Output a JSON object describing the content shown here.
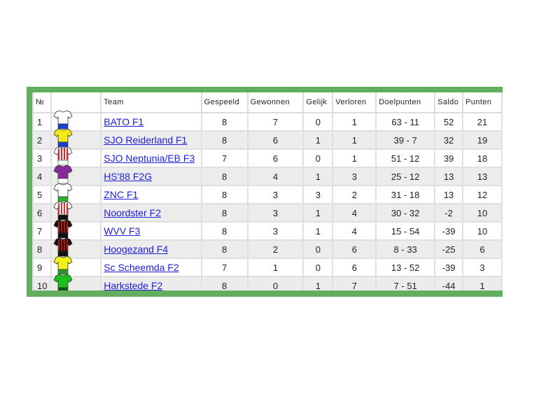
{
  "headers": [
    "№",
    "",
    "Team",
    "Gespeeld",
    "Gewonnen",
    "Gelijk",
    "Verloren",
    "Doelpunten",
    "Saldo",
    "Punten"
  ],
  "rows": [
    {
      "pos": "1",
      "team": "BATO F1",
      "shirt": {
        "body": "#ffffff",
        "stripes": null,
        "shorts": "#1a3fd0"
      },
      "played": "8",
      "won": "7",
      "draw": "0",
      "lost": "1",
      "goals": "63 - 11",
      "diff": "52",
      "points": "21"
    },
    {
      "pos": "2",
      "team": "SJO Reiderland F1",
      "shirt": {
        "body": "#f4e81a",
        "stripes": null,
        "shorts": "#1a3fd0"
      },
      "played": "8",
      "won": "6",
      "draw": "1",
      "lost": "1",
      "goals": "39 - 7",
      "diff": "32",
      "points": "19"
    },
    {
      "pos": "3",
      "team": "SJO Neptunia/EB F3",
      "shirt": {
        "body": "#ffffff",
        "stripes": "#e02020",
        "shorts": "#ffffff"
      },
      "played": "7",
      "won": "6",
      "draw": "0",
      "lost": "1",
      "goals": "51 - 12",
      "diff": "39",
      "points": "18"
    },
    {
      "pos": "4",
      "team": "HS'88 F2G",
      "shirt": {
        "body": "#8a2a9a",
        "stripes": null,
        "shorts": "#ffffff"
      },
      "played": "8",
      "won": "4",
      "draw": "1",
      "lost": "3",
      "goals": "25 - 12",
      "diff": "13",
      "points": "13"
    },
    {
      "pos": "5",
      "team": "ZNC F1",
      "shirt": {
        "body": "#ffffff",
        "stripes": null,
        "shorts": "#2ab02a"
      },
      "played": "8",
      "won": "3",
      "draw": "3",
      "lost": "2",
      "goals": "31 - 18",
      "diff": "13",
      "points": "12"
    },
    {
      "pos": "6",
      "team": "Noordster F2",
      "shirt": {
        "body": "#ffffff",
        "stripes": "#e03030",
        "shorts": "#111111"
      },
      "played": "8",
      "won": "3",
      "draw": "1",
      "lost": "4",
      "goals": "30 - 32",
      "diff": "-2",
      "points": "10"
    },
    {
      "pos": "7",
      "team": "WVV F3",
      "shirt": {
        "body": "#111111",
        "stripes": "#c01010",
        "shorts": "#111111"
      },
      "played": "8",
      "won": "3",
      "draw": "1",
      "lost": "4",
      "goals": "15 - 54",
      "diff": "-39",
      "points": "10"
    },
    {
      "pos": "8",
      "team": "Hoogezand F4",
      "shirt": {
        "body": "#111111",
        "stripes": "#c01010",
        "shorts": "#111111"
      },
      "played": "8",
      "won": "2",
      "draw": "0",
      "lost": "6",
      "goals": "8 - 33",
      "diff": "-25",
      "points": "6"
    },
    {
      "pos": "9",
      "team": "Sc Scheemda F2",
      "shirt": {
        "body": "#f4f01a",
        "stripes": null,
        "shorts": "#2a9a2a"
      },
      "played": "7",
      "won": "1",
      "draw": "0",
      "lost": "6",
      "goals": "13 - 52",
      "diff": "-39",
      "points": "3"
    },
    {
      "pos": "10",
      "team": "Harkstede F2",
      "shirt": {
        "body": "#18c018",
        "stripes": null,
        "shorts": "#0a5a0a"
      },
      "played": "8",
      "won": "0",
      "draw": "1",
      "lost": "7",
      "goals": "7 - 51",
      "diff": "-44",
      "points": "1"
    }
  ],
  "colors": {
    "frame": "#62ad5e",
    "link": "#2020d8",
    "alt_row": "#ececec"
  }
}
